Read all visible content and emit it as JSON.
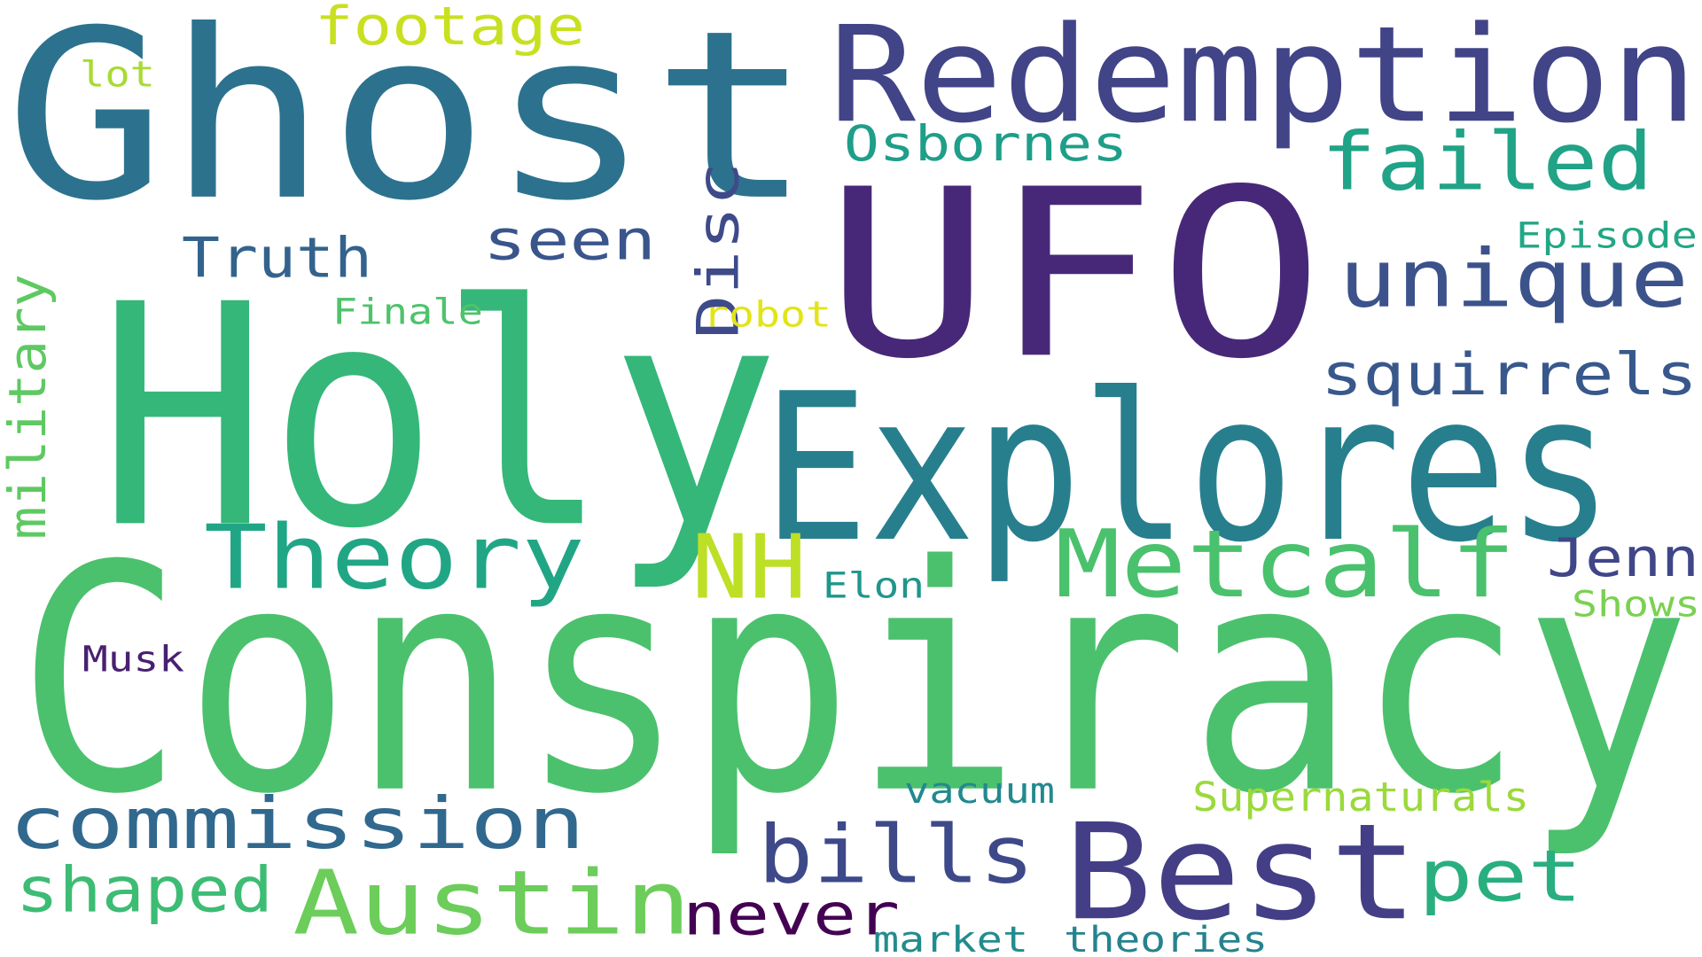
{
  "word_cloud": {
    "words": [
      {
        "text": "Conspiracy",
        "color": "#4bc16d"
      },
      {
        "text": "UFO",
        "color": "#472878"
      },
      {
        "text": "Ghost",
        "color": "#2c728e"
      },
      {
        "text": "Holy",
        "color": "#35b779"
      },
      {
        "text": "Explores",
        "color": "#277f8e"
      },
      {
        "text": "Redemption",
        "color": "#414487"
      },
      {
        "text": "Best",
        "color": "#433e85"
      },
      {
        "text": "Metcalf",
        "color": "#4ac16d"
      },
      {
        "text": "Theory",
        "color": "#21a685"
      },
      {
        "text": "Austin",
        "color": "#6ccd5a"
      },
      {
        "text": "commission",
        "color": "#31688e"
      },
      {
        "text": "bills",
        "color": "#3e4989"
      },
      {
        "text": "unique",
        "color": "#3b528b"
      },
      {
        "text": "failed",
        "color": "#20a386"
      },
      {
        "text": "squirrels",
        "color": "#38588c"
      },
      {
        "text": "pet",
        "color": "#29af7f"
      },
      {
        "text": "never",
        "color": "#440154"
      },
      {
        "text": "shaped",
        "color": "#3dbc74"
      },
      {
        "text": "Osbornes",
        "color": "#1f9e89"
      },
      {
        "text": "Truth",
        "color": "#33638d"
      },
      {
        "text": "NH",
        "color": "#bddf26"
      },
      {
        "text": "seen",
        "color": "#3a548c"
      },
      {
        "text": "Disc",
        "color": "#3e4a89"
      },
      {
        "text": "military",
        "color": "#5ec962"
      },
      {
        "text": "footage",
        "color": "#c8e020"
      },
      {
        "text": "Jenn",
        "color": "#404688"
      },
      {
        "text": "Supernaturals",
        "color": "#9bd93c"
      },
      {
        "text": "theories",
        "color": "#25838e"
      },
      {
        "text": "market",
        "color": "#228c8d"
      },
      {
        "text": "vacuum",
        "color": "#23898e"
      },
      {
        "text": "Episode",
        "color": "#22a785"
      },
      {
        "text": "Finale",
        "color": "#4ec36b"
      },
      {
        "text": "robot",
        "color": "#e2e418"
      },
      {
        "text": "Elon",
        "color": "#1f968b"
      },
      {
        "text": "Shows",
        "color": "#7ad151"
      },
      {
        "text": "Musk",
        "color": "#482071"
      },
      {
        "text": "lot",
        "color": "#a8db34"
      }
    ]
  }
}
